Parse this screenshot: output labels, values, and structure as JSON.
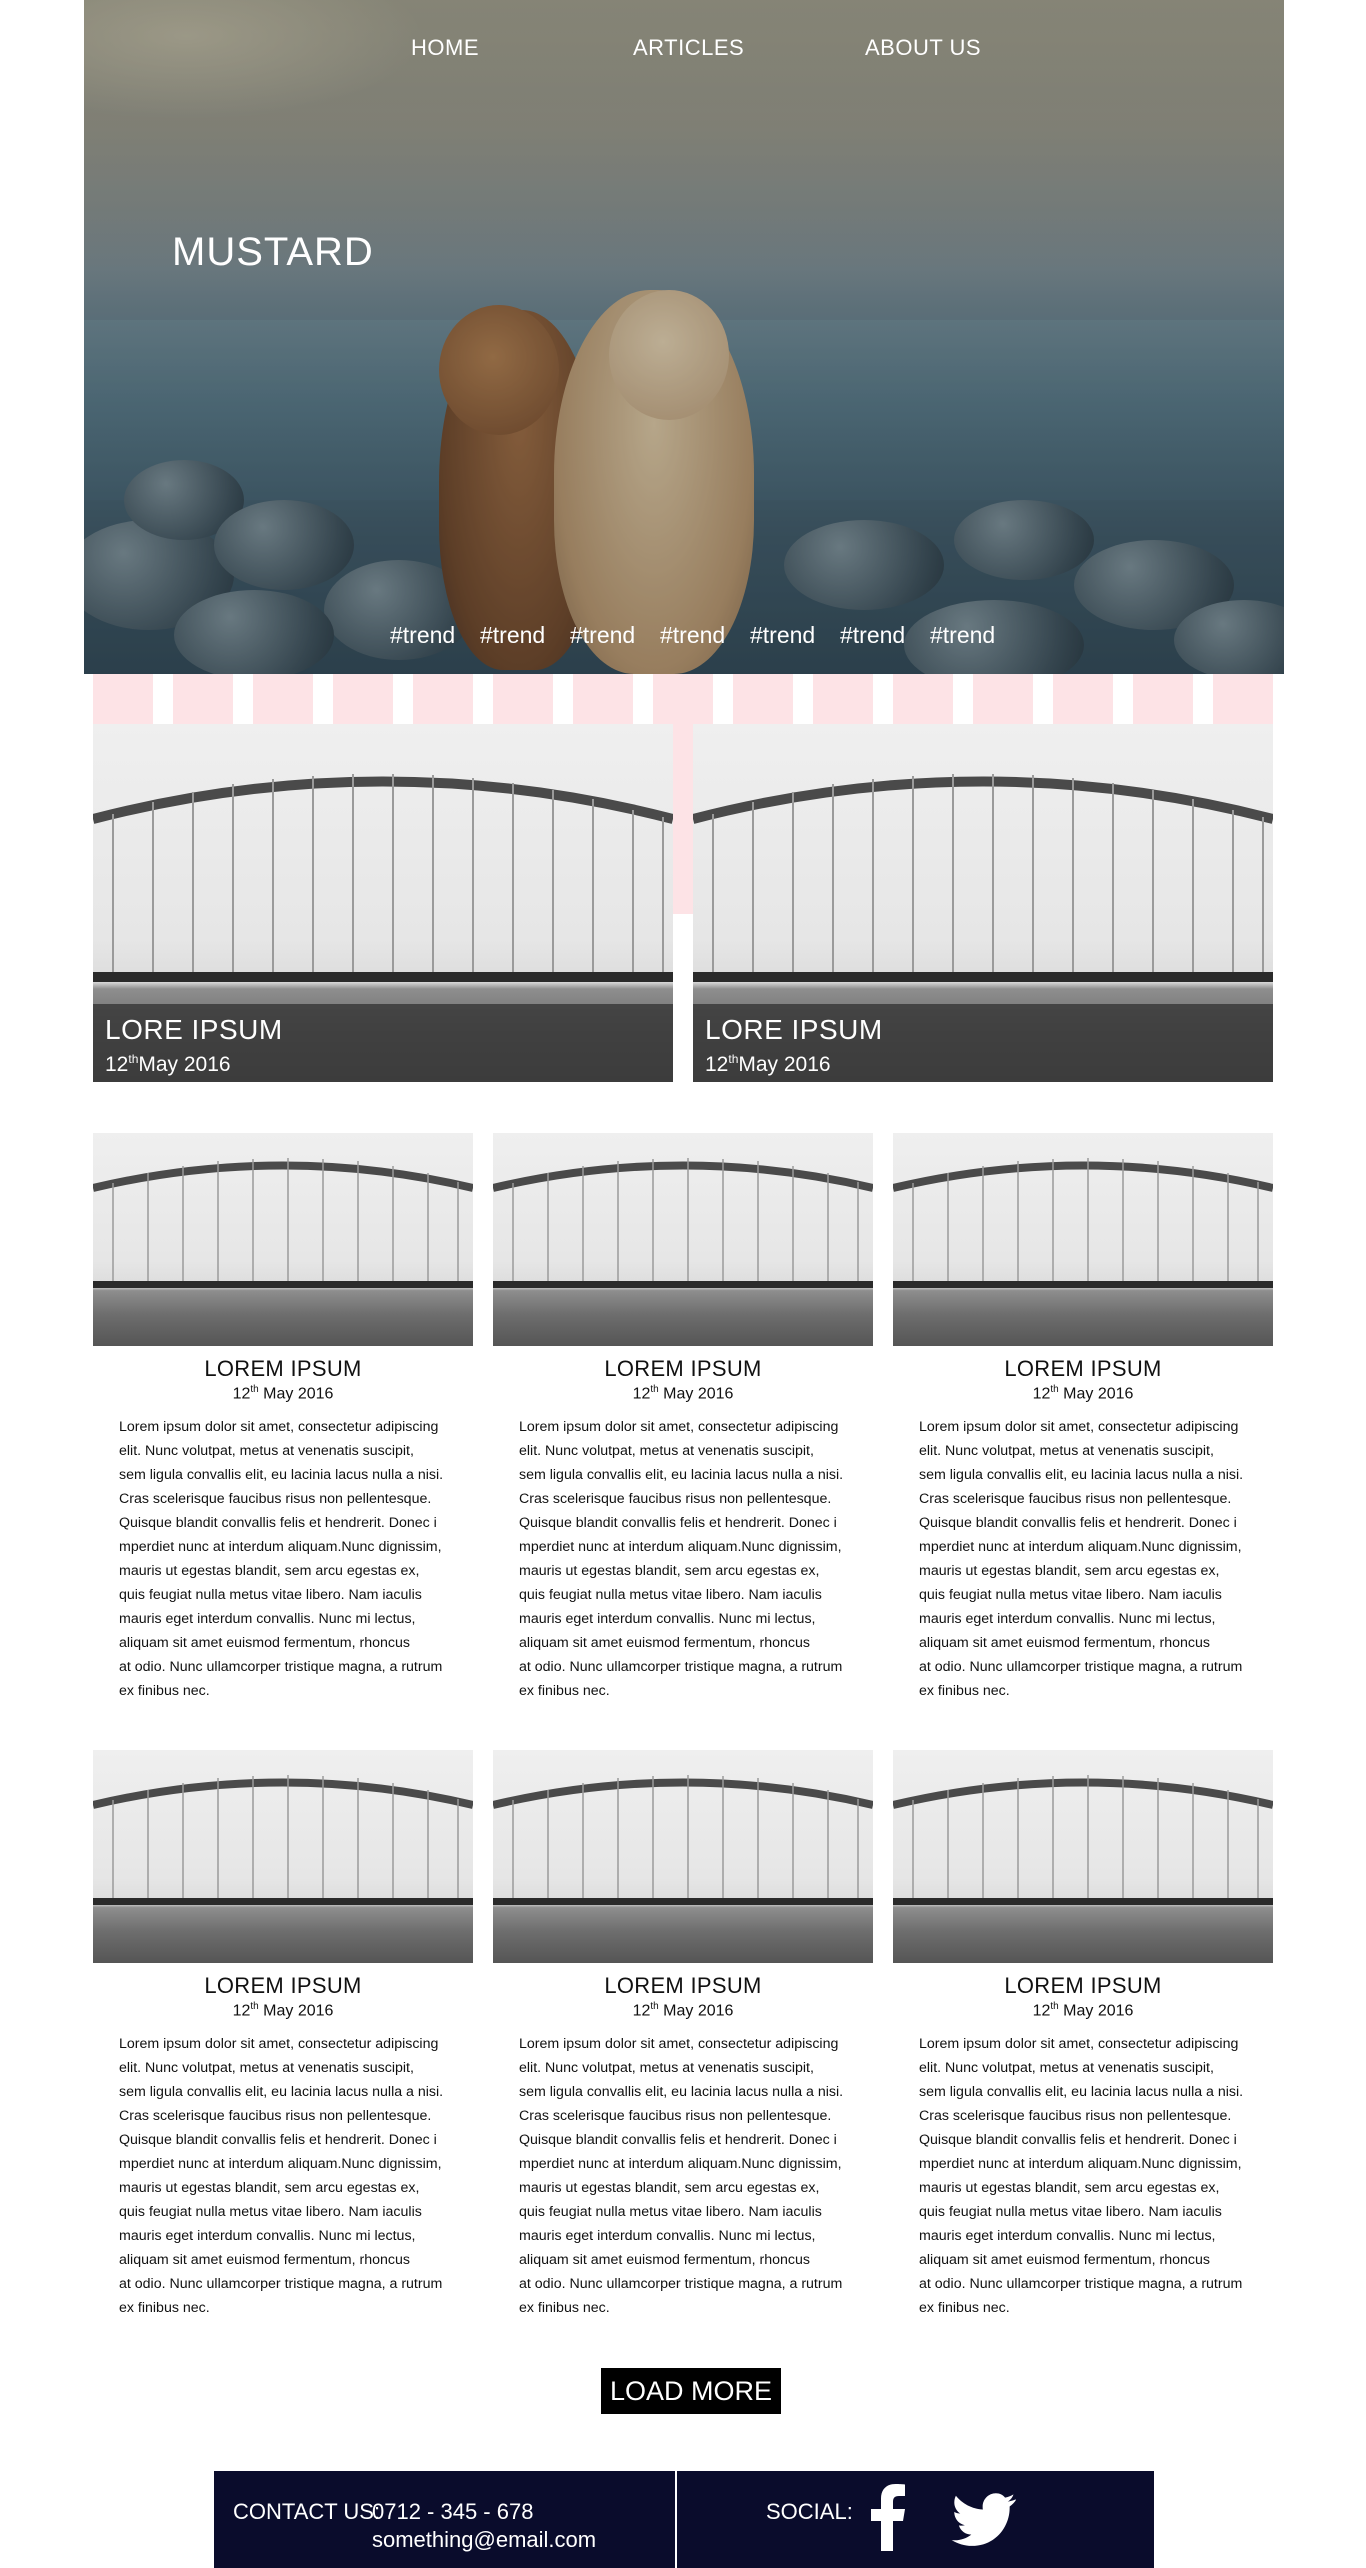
{
  "nav": {
    "items": [
      {
        "label": "HOME"
      },
      {
        "label": "ARTICLES"
      },
      {
        "label": "ABOUT US"
      }
    ]
  },
  "hero": {
    "brand": "MUSTARD",
    "tags": [
      "#trend",
      "#trend",
      "#trend",
      "#trend",
      "#trend",
      "#trend",
      "#trend"
    ]
  },
  "featured": [
    {
      "title": "LORE IPSUM",
      "day": "12",
      "suffix": "th",
      "rest": "May 2016"
    },
    {
      "title": "LORE IPSUM",
      "day": "12",
      "suffix": "th",
      "rest": "May 2016"
    }
  ],
  "cards": [
    {
      "title": "LOREM IPSUM",
      "day": "12",
      "suffix": "th",
      "rest": " May 2016",
      "body": "Lorem ipsum dolor sit amet, consectetur adipiscing\n elit. Nunc volutpat, metus at venenatis suscipit,\nsem ligula convallis elit, eu lacinia lacus nulla a nisi.\nCras scelerisque faucibus risus non pellentesque.\nQuisque blandit convallis felis et hendrerit. Donec i\nmperdiet nunc at interdum aliquam.Nunc dignissim,\nmauris ut egestas blandit, sem arcu egestas ex,\nquis feugiat nulla metus vitae libero. Nam iaculis\nmauris eget interdum convallis. Nunc mi lectus,\naliquam sit amet euismod fermentum, rhoncus\nat odio. Nunc ullamcorper tristique magna, a rutrum\nex finibus nec."
    },
    {
      "title": "LOREM IPSUM",
      "day": "12",
      "suffix": "th",
      "rest": " May 2016",
      "body": "Lorem ipsum dolor sit amet, consectetur adipiscing\n elit. Nunc volutpat, metus at venenatis suscipit,\nsem ligula convallis elit, eu lacinia lacus nulla a nisi.\nCras scelerisque faucibus risus non pellentesque.\nQuisque blandit convallis felis et hendrerit. Donec i\nmperdiet nunc at interdum aliquam.Nunc dignissim,\nmauris ut egestas blandit, sem arcu egestas ex,\nquis feugiat nulla metus vitae libero. Nam iaculis\nmauris eget interdum convallis. Nunc mi lectus,\naliquam sit amet euismod fermentum, rhoncus\nat odio. Nunc ullamcorper tristique magna, a rutrum\nex finibus nec."
    },
    {
      "title": "LOREM IPSUM",
      "day": "12",
      "suffix": "th",
      "rest": " May 2016",
      "body": "Lorem ipsum dolor sit amet, consectetur adipiscing\n elit. Nunc volutpat, metus at venenatis suscipit,\nsem ligula convallis elit, eu lacinia lacus nulla a nisi.\nCras scelerisque faucibus risus non pellentesque.\nQuisque blandit convallis felis et hendrerit. Donec i\nmperdiet nunc at interdum aliquam.Nunc dignissim,\nmauris ut egestas blandit, sem arcu egestas ex,\nquis feugiat nulla metus vitae libero. Nam iaculis\nmauris eget interdum convallis. Nunc mi lectus,\naliquam sit amet euismod fermentum, rhoncus\nat odio. Nunc ullamcorper tristique magna, a rutrum\nex finibus nec."
    },
    {
      "title": "LOREM IPSUM",
      "day": "12",
      "suffix": "th",
      "rest": " May 2016",
      "body": "Lorem ipsum dolor sit amet, consectetur adipiscing\n elit. Nunc volutpat, metus at venenatis suscipit,\nsem ligula convallis elit, eu lacinia lacus nulla a nisi.\nCras scelerisque faucibus risus non pellentesque.\nQuisque blandit convallis felis et hendrerit. Donec i\nmperdiet nunc at interdum aliquam.Nunc dignissim,\nmauris ut egestas blandit, sem arcu egestas ex,\nquis feugiat nulla metus vitae libero. Nam iaculis\nmauris eget interdum convallis. Nunc mi lectus,\naliquam sit amet euismod fermentum, rhoncus\nat odio. Nunc ullamcorper tristique magna, a rutrum\nex finibus nec."
    },
    {
      "title": "LOREM IPSUM",
      "day": "12",
      "suffix": "th",
      "rest": " May 2016",
      "body": "Lorem ipsum dolor sit amet, consectetur adipiscing\n elit. Nunc volutpat, metus at venenatis suscipit,\nsem ligula convallis elit, eu lacinia lacus nulla a nisi.\nCras scelerisque faucibus risus non pellentesque.\nQuisque blandit convallis felis et hendrerit. Donec i\nmperdiet nunc at interdum aliquam.Nunc dignissim,\nmauris ut egestas blandit, sem arcu egestas ex,\nquis feugiat nulla metus vitae libero. Nam iaculis\nmauris eget interdum convallis. Nunc mi lectus,\naliquam sit amet euismod fermentum, rhoncus\nat odio. Nunc ullamcorper tristique magna, a rutrum\nex finibus nec."
    },
    {
      "title": "LOREM IPSUM",
      "day": "12",
      "suffix": "th",
      "rest": " May 2016",
      "body": "Lorem ipsum dolor sit amet, consectetur adipiscing\n elit. Nunc volutpat, metus at venenatis suscipit,\nsem ligula convallis elit, eu lacinia lacus nulla a nisi.\nCras scelerisque faucibus risus non pellentesque.\nQuisque blandit convallis felis et hendrerit. Donec i\nmperdiet nunc at interdum aliquam.Nunc dignissim,\nmauris ut egestas blandit, sem arcu egestas ex,\nquis feugiat nulla metus vitae libero. Nam iaculis\nmauris eget interdum convallis. Nunc mi lectus,\naliquam sit amet euismod fermentum, rhoncus\nat odio. Nunc ullamcorper tristique magna, a rutrum\nex finibus nec."
    }
  ],
  "load_more": "LOAD MORE",
  "footer": {
    "contact_label": "CONTACT US:",
    "phone": "0712 - 345 - 678",
    "email": "something@email.com",
    "social_label": "SOCIAL:",
    "icons": [
      "facebook-icon",
      "twitter-icon"
    ],
    "background": "#0a0c2c"
  },
  "colors": {
    "stripe": "#fde3e6",
    "caption_bg": "#373737"
  }
}
